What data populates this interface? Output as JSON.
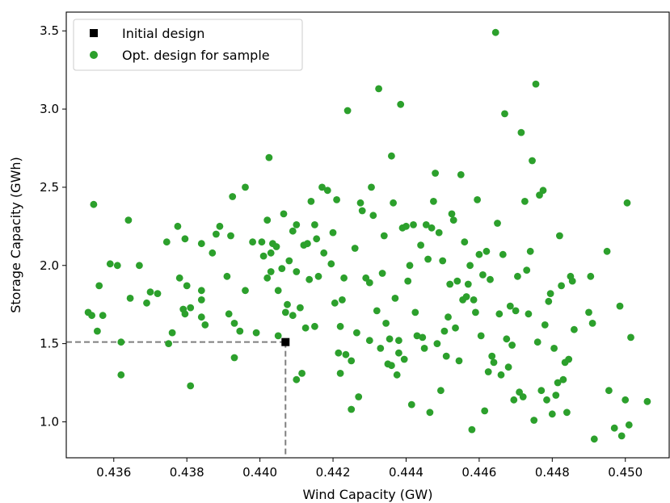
{
  "chart_data": {
    "type": "scatter",
    "xlabel": "Wind Capacity (GW)",
    "ylabel": "Storage Capacity (GWh)",
    "xlim": [
      0.4347,
      0.4512
    ],
    "ylim": [
      0.77,
      3.62
    ],
    "xticks": [
      0.436,
      0.438,
      0.44,
      0.442,
      0.444,
      0.446,
      0.448,
      0.45
    ],
    "xtick_labels": [
      "0.436",
      "0.438",
      "0.440",
      "0.442",
      "0.444",
      "0.446",
      "0.448",
      "0.450"
    ],
    "yticks": [
      1.0,
      1.5,
      2.0,
      2.5,
      3.0,
      3.5
    ],
    "ytick_labels": [
      "1.0",
      "1.5",
      "2.0",
      "2.5",
      "3.0",
      "3.5"
    ],
    "grid": false,
    "legend_position": "top-left",
    "colors": {
      "sample": "#2ca02c",
      "initial": "#000000",
      "guide": "#7f7f7f"
    },
    "series": [
      {
        "name": "Initial design",
        "marker": "square",
        "points": [
          [
            0.4407,
            1.51
          ]
        ]
      },
      {
        "name": "Opt. design for sample",
        "marker": "circle",
        "points": [
          [
            0.43545,
            2.39
          ],
          [
            0.4353,
            1.7
          ],
          [
            0.4354,
            1.68
          ],
          [
            0.4356,
            1.87
          ],
          [
            0.43555,
            1.58
          ],
          [
            0.4357,
            1.68
          ],
          [
            0.4364,
            2.29
          ],
          [
            0.4359,
            2.01
          ],
          [
            0.4361,
            2.0
          ],
          [
            0.4362,
            1.51
          ],
          [
            0.4362,
            1.3
          ],
          [
            0.43645,
            1.79
          ],
          [
            0.4367,
            2.0
          ],
          [
            0.4369,
            1.76
          ],
          [
            0.437,
            1.83
          ],
          [
            0.4372,
            1.82
          ],
          [
            0.43745,
            2.15
          ],
          [
            0.4375,
            1.5
          ],
          [
            0.4376,
            1.57
          ],
          [
            0.43775,
            2.25
          ],
          [
            0.4378,
            1.92
          ],
          [
            0.4379,
            1.72
          ],
          [
            0.43795,
            2.17
          ],
          [
            0.438,
            1.87
          ],
          [
            0.4381,
            1.23
          ],
          [
            0.43795,
            1.69
          ],
          [
            0.4384,
            1.84
          ],
          [
            0.4384,
            1.78
          ],
          [
            0.4384,
            2.14
          ],
          [
            0.4385,
            1.62
          ],
          [
            0.4387,
            2.08
          ],
          [
            0.4388,
            2.2
          ],
          [
            0.4389,
            2.25
          ],
          [
            0.4391,
            1.93
          ],
          [
            0.43915,
            1.69
          ],
          [
            0.43925,
            2.44
          ],
          [
            0.4392,
            2.19
          ],
          [
            0.4393,
            1.41
          ],
          [
            0.4393,
            1.63
          ],
          [
            0.43945,
            1.58
          ],
          [
            0.4396,
            2.5
          ],
          [
            0.4396,
            1.84
          ],
          [
            0.4398,
            2.15
          ],
          [
            0.4399,
            1.57
          ],
          [
            0.44005,
            2.15
          ],
          [
            0.4401,
            2.06
          ],
          [
            0.4402,
            1.92
          ],
          [
            0.4402,
            2.29
          ],
          [
            0.44025,
            2.69
          ],
          [
            0.4403,
            2.08
          ],
          [
            0.4403,
            1.96
          ],
          [
            0.44035,
            2.14
          ],
          [
            0.44045,
            2.12
          ],
          [
            0.4405,
            1.84
          ],
          [
            0.4405,
            1.55
          ],
          [
            0.4406,
            1.98
          ],
          [
            0.44065,
            2.33
          ],
          [
            0.4407,
            1.7
          ],
          [
            0.44075,
            1.75
          ],
          [
            0.4408,
            2.03
          ],
          [
            0.4409,
            1.68
          ],
          [
            0.4409,
            2.22
          ],
          [
            0.441,
            2.26
          ],
          [
            0.441,
            1.96
          ],
          [
            0.4411,
            1.73
          ],
          [
            0.44115,
            1.31
          ],
          [
            0.4412,
            2.13
          ],
          [
            0.44125,
            1.6
          ],
          [
            0.4413,
            2.14
          ],
          [
            0.44135,
            1.91
          ],
          [
            0.4414,
            2.41
          ],
          [
            0.4415,
            2.26
          ],
          [
            0.44155,
            2.17
          ],
          [
            0.4416,
            1.93
          ],
          [
            0.4417,
            2.5
          ],
          [
            0.44175,
            2.08
          ],
          [
            0.44185,
            2.48
          ],
          [
            0.44195,
            2.01
          ],
          [
            0.442,
            2.21
          ],
          [
            0.44205,
            1.76
          ],
          [
            0.4421,
            2.42
          ],
          [
            0.44215,
            1.44
          ],
          [
            0.4422,
            1.61
          ],
          [
            0.4422,
            1.31
          ],
          [
            0.44225,
            1.78
          ],
          [
            0.4423,
            1.92
          ],
          [
            0.44235,
            1.43
          ],
          [
            0.4424,
            2.99
          ],
          [
            0.4425,
            1.39
          ],
          [
            0.4426,
            2.11
          ],
          [
            0.44265,
            1.57
          ],
          [
            0.4427,
            1.16
          ],
          [
            0.44275,
            2.4
          ],
          [
            0.4428,
            2.35
          ],
          [
            0.4429,
            1.92
          ],
          [
            0.443,
            1.89
          ],
          [
            0.44305,
            2.5
          ],
          [
            0.4431,
            2.32
          ],
          [
            0.4432,
            1.71
          ],
          [
            0.44325,
            3.13
          ],
          [
            0.4433,
            1.47
          ],
          [
            0.44335,
            1.95
          ],
          [
            0.4434,
            2.19
          ],
          [
            0.44345,
            1.63
          ],
          [
            0.4435,
            1.37
          ],
          [
            0.44355,
            1.53
          ],
          [
            0.4436,
            2.7
          ],
          [
            0.44365,
            2.4
          ],
          [
            0.4437,
            1.79
          ],
          [
            0.44375,
            1.3
          ],
          [
            0.4438,
            1.52
          ],
          [
            0.44385,
            3.03
          ],
          [
            0.4439,
            2.24
          ],
          [
            0.44395,
            1.4
          ],
          [
            0.444,
            2.25
          ],
          [
            0.44405,
            1.9
          ],
          [
            0.4441,
            2.0
          ],
          [
            0.44415,
            1.11
          ],
          [
            0.4442,
            2.26
          ],
          [
            0.44425,
            1.7
          ],
          [
            0.4443,
            1.55
          ],
          [
            0.4444,
            2.13
          ],
          [
            0.44445,
            1.54
          ],
          [
            0.4445,
            1.47
          ],
          [
            0.44455,
            2.26
          ],
          [
            0.4446,
            2.04
          ],
          [
            0.44465,
            1.06
          ],
          [
            0.4447,
            2.24
          ],
          [
            0.44475,
            2.41
          ],
          [
            0.4448,
            2.59
          ],
          [
            0.44485,
            1.5
          ],
          [
            0.4449,
            2.21
          ],
          [
            0.44495,
            1.2
          ],
          [
            0.445,
            2.03
          ],
          [
            0.44505,
            1.58
          ],
          [
            0.4451,
            1.42
          ],
          [
            0.44515,
            1.67
          ],
          [
            0.4452,
            1.88
          ],
          [
            0.44525,
            2.33
          ],
          [
            0.4453,
            2.29
          ],
          [
            0.44535,
            1.6
          ],
          [
            0.4454,
            1.9
          ],
          [
            0.44545,
            1.39
          ],
          [
            0.4455,
            2.58
          ],
          [
            0.44555,
            1.78
          ],
          [
            0.4456,
            2.15
          ],
          [
            0.44565,
            1.8
          ],
          [
            0.4457,
            1.88
          ],
          [
            0.44575,
            2.0
          ],
          [
            0.4458,
            0.95
          ],
          [
            0.44585,
            1.78
          ],
          [
            0.4459,
            1.7
          ],
          [
            0.44595,
            2.42
          ],
          [
            0.446,
            2.07
          ],
          [
            0.44605,
            1.55
          ],
          [
            0.4461,
            1.94
          ],
          [
            0.44615,
            1.07
          ],
          [
            0.4462,
            2.09
          ],
          [
            0.44625,
            1.32
          ],
          [
            0.4463,
            1.91
          ],
          [
            0.44635,
            1.42
          ],
          [
            0.4464,
            1.38
          ],
          [
            0.44645,
            3.49
          ],
          [
            0.4465,
            2.27
          ],
          [
            0.44655,
            1.69
          ],
          [
            0.4466,
            1.3
          ],
          [
            0.44665,
            2.07
          ],
          [
            0.4467,
            2.97
          ],
          [
            0.44675,
            1.53
          ],
          [
            0.4468,
            1.35
          ],
          [
            0.44685,
            1.74
          ],
          [
            0.4469,
            1.49
          ],
          [
            0.44695,
            1.14
          ],
          [
            0.447,
            1.71
          ],
          [
            0.44705,
            1.93
          ],
          [
            0.4471,
            1.19
          ],
          [
            0.44715,
            2.85
          ],
          [
            0.4472,
            1.16
          ],
          [
            0.44725,
            2.41
          ],
          [
            0.4473,
            1.97
          ],
          [
            0.44735,
            1.69
          ],
          [
            0.4474,
            2.09
          ],
          [
            0.44745,
            2.67
          ],
          [
            0.4475,
            1.01
          ],
          [
            0.44755,
            3.16
          ],
          [
            0.4476,
            1.51
          ],
          [
            0.44765,
            2.45
          ],
          [
            0.4477,
            1.2
          ],
          [
            0.44775,
            2.48
          ],
          [
            0.4478,
            1.62
          ],
          [
            0.44785,
            1.14
          ],
          [
            0.4479,
            1.77
          ],
          [
            0.44795,
            1.82
          ],
          [
            0.448,
            1.05
          ],
          [
            0.44805,
            1.47
          ],
          [
            0.4481,
            1.17
          ],
          [
            0.44815,
            1.25
          ],
          [
            0.4482,
            2.19
          ],
          [
            0.44825,
            1.87
          ],
          [
            0.4483,
            1.27
          ],
          [
            0.44835,
            1.38
          ],
          [
            0.4484,
            1.06
          ],
          [
            0.44845,
            1.4
          ],
          [
            0.4485,
            1.93
          ],
          [
            0.44855,
            1.9
          ],
          [
            0.4486,
            1.59
          ],
          [
            0.449,
            1.7
          ],
          [
            0.44905,
            1.93
          ],
          [
            0.4491,
            1.63
          ],
          [
            0.44915,
            0.89
          ],
          [
            0.4495,
            2.09
          ],
          [
            0.44955,
            1.2
          ],
          [
            0.4497,
            0.96
          ],
          [
            0.44985,
            1.74
          ],
          [
            0.4499,
            0.91
          ],
          [
            0.45,
            1.14
          ],
          [
            0.45005,
            2.4
          ],
          [
            0.4501,
            0.98
          ],
          [
            0.45015,
            1.54
          ],
          [
            0.4506,
            1.13
          ],
          [
            0.4381,
            1.73
          ],
          [
            0.4384,
            1.67
          ],
          [
            0.4436,
            1.36
          ],
          [
            0.4438,
            1.44
          ],
          [
            0.441,
            1.27
          ],
          [
            0.4415,
            1.61
          ],
          [
            0.443,
            1.52
          ],
          [
            0.4425,
            1.08
          ]
        ]
      }
    ],
    "annotations": [
      {
        "type": "dashed-guide",
        "from_point": [
          0.4407,
          1.51
        ],
        "to_axes": [
          "x",
          "y"
        ]
      }
    ]
  }
}
